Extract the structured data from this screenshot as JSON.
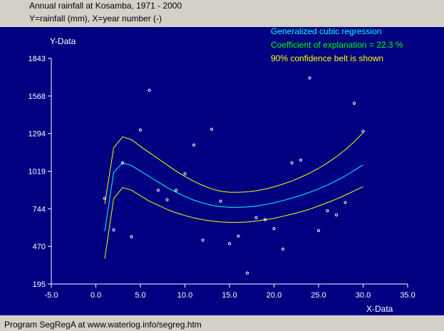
{
  "header": {
    "title": "Annual rainfall at Kosamba, 1971 - 2000",
    "subtitle": "Y=rainfall (mm), X=year number (-)"
  },
  "footer": {
    "text": "Program SegRegA at www.waterlog.info/segreg.htm"
  },
  "colors": {
    "window_bg": "#d4d0c8",
    "plot_bg": "#000080",
    "axis": "#ffffff",
    "data_points": "#ffffff",
    "regression_line": "#00ffff",
    "confidence_belt": "#ffff00",
    "info_regression": "#00ffff",
    "info_coefficient": "#00ff00",
    "info_belt": "#ffff00"
  },
  "chart_data": {
    "type": "scatter",
    "title": "Annual rainfall at Kosamba, 1971 - 2000",
    "xlabel": "X-Data",
    "ylabel": "Y-Data",
    "xlim": [
      -5.0,
      35.0
    ],
    "ylim": [
      195,
      1843
    ],
    "x_ticks": [
      -5,
      0,
      5,
      10,
      15,
      20,
      25,
      30,
      35
    ],
    "x_tick_labels": [
      "-5.0",
      "0.0",
      "5.0",
      "10.0",
      "15.0",
      "20.0",
      "25.0",
      "30.0",
      "35.0"
    ],
    "y_ticks": [
      195,
      470,
      744,
      1019,
      1294,
      1568,
      1843
    ],
    "y_tick_labels": [
      "195",
      "470",
      "744",
      "1019",
      "1294",
      "1568",
      "1843"
    ],
    "grid": false,
    "annotations": [
      "Generalized cubic regression",
      "Coefficient of explanation = 22.3 %",
      "90% confidence belt is shown"
    ],
    "series": [
      {
        "role": "observed",
        "style": "markers",
        "x": [
          1,
          2,
          3,
          4,
          5,
          6,
          7,
          8,
          9,
          10,
          11,
          12,
          13,
          14,
          15,
          16,
          17,
          18,
          19,
          20,
          21,
          22,
          23,
          24,
          25,
          26,
          27,
          28,
          29,
          30
        ],
        "y": [
          820,
          590,
          1080,
          540,
          1320,
          1610,
          880,
          810,
          880,
          1000,
          1210,
          515,
          1325,
          800,
          490,
          545,
          275,
          680,
          665,
          600,
          450,
          1080,
          1100,
          1700,
          585,
          730,
          700,
          790,
          1515,
          1310
        ]
      },
      {
        "role": "regression",
        "style": "line",
        "x": [
          1,
          2,
          3,
          4,
          5,
          6,
          7,
          8,
          9,
          10,
          11,
          12,
          13,
          14,
          15,
          16,
          17,
          18,
          19,
          20,
          21,
          22,
          23,
          24,
          25,
          26,
          27,
          28,
          29,
          30
        ],
        "y": [
          580,
          1010,
          1080,
          1060,
          1020,
          980,
          940,
          900,
          865,
          835,
          808,
          787,
          770,
          760,
          755,
          755,
          758,
          765,
          775,
          788,
          805,
          822,
          842,
          865,
          890,
          918,
          950,
          985,
          1025,
          1065
        ]
      },
      {
        "role": "upper_confidence",
        "style": "line",
        "x": [
          1,
          2,
          3,
          4,
          5,
          6,
          7,
          8,
          9,
          10,
          11,
          12,
          13,
          14,
          15,
          16,
          17,
          18,
          19,
          20,
          21,
          22,
          23,
          24,
          25,
          26,
          27,
          28,
          29,
          30
        ],
        "y": [
          780,
          1190,
          1270,
          1250,
          1200,
          1155,
          1110,
          1065,
          1020,
          980,
          945,
          915,
          890,
          873,
          865,
          865,
          868,
          876,
          888,
          905,
          925,
          948,
          975,
          1005,
          1040,
          1080,
          1125,
          1175,
          1235,
          1300
        ]
      },
      {
        "role": "lower_confidence",
        "style": "line",
        "x": [
          1,
          2,
          3,
          4,
          5,
          6,
          7,
          8,
          9,
          10,
          11,
          12,
          13,
          14,
          15,
          16,
          17,
          18,
          19,
          20,
          21,
          22,
          23,
          24,
          25,
          26,
          27,
          28,
          29,
          30
        ],
        "y": [
          380,
          820,
          900,
          880,
          840,
          800,
          770,
          740,
          715,
          695,
          678,
          665,
          655,
          648,
          645,
          645,
          648,
          655,
          665,
          675,
          690,
          705,
          722,
          742,
          765,
          790,
          815,
          845,
          875,
          905
        ]
      }
    ]
  }
}
